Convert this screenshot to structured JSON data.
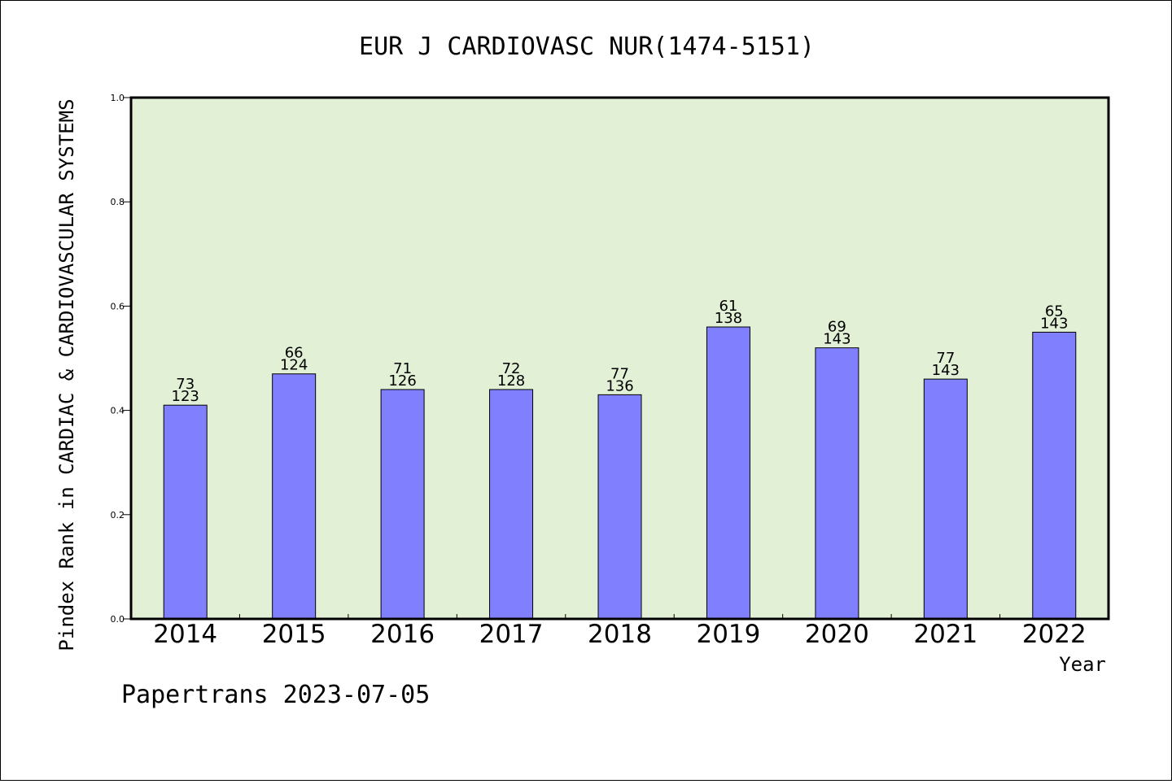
{
  "chart_data": {
    "type": "bar",
    "title": "EUR J CARDIOVASC NUR(1474-5151)",
    "xlabel": "Year",
    "ylabel": "Pindex Rank in CARDIAC & CARDIOVASCULAR SYSTEMS",
    "ylim": [
      0,
      1.0
    ],
    "yticks": [
      "0.0",
      "0.2",
      "0.4",
      "0.6",
      "0.8",
      "1.0"
    ],
    "grid": false,
    "categories": [
      "2014",
      "2015",
      "2016",
      "2017",
      "2018",
      "2019",
      "2020",
      "2021",
      "2022"
    ],
    "values": [
      0.41,
      0.47,
      0.44,
      0.44,
      0.43,
      0.56,
      0.52,
      0.46,
      0.55
    ],
    "rank": [
      "73",
      "66",
      "71",
      "72",
      "77",
      "61",
      "69",
      "77",
      "65"
    ],
    "total": [
      "123",
      "124",
      "126",
      "128",
      "136",
      "138",
      "143",
      "143",
      "143"
    ]
  },
  "footer": "Papertrans 2023-07-05",
  "colors": {
    "plot_background": "#e2f0d6",
    "bar_fill": "#8080ff",
    "bar_stroke": "#000000",
    "axis": "#000000"
  }
}
